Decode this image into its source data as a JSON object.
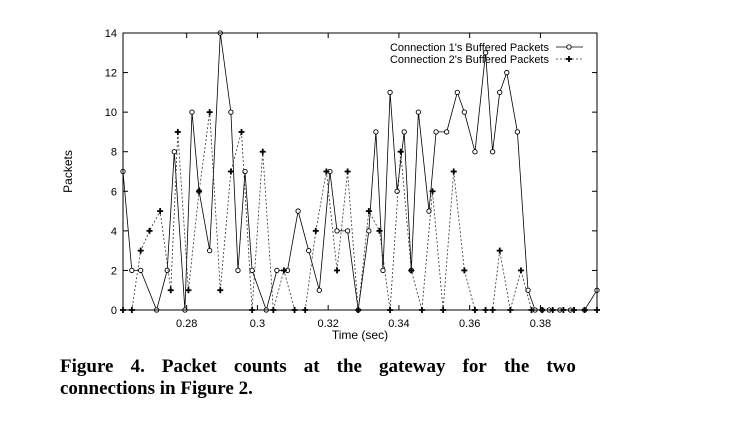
{
  "chart_data": {
    "type": "line",
    "xlabel": "Time (sec)",
    "ylabel": "Packets",
    "xlim": [
      0.262,
      0.396
    ],
    "ylim": [
      0,
      14
    ],
    "x_ticks": [
      0.28,
      0.3,
      0.32,
      0.34,
      0.36,
      0.38
    ],
    "x_tick_labels": [
      "0.28",
      "0.3",
      "0.32",
      "0.34",
      "0.36",
      "0.38"
    ],
    "y_ticks": [
      0,
      2,
      4,
      6,
      8,
      10,
      12,
      14
    ],
    "legend_position": "top-right",
    "grid": false,
    "series": [
      {
        "name": "Connection 1's Buffered Packets",
        "marker": "diamond",
        "line_style": "solid",
        "x": [
          0.262,
          0.2645,
          0.267,
          0.2715,
          0.2745,
          0.2765,
          0.2795,
          0.2815,
          0.2835,
          0.2865,
          0.2895,
          0.2925,
          0.2945,
          0.2965,
          0.2985,
          0.3025,
          0.3055,
          0.3085,
          0.3115,
          0.3145,
          0.3175,
          0.3205,
          0.3225,
          0.3255,
          0.3285,
          0.3315,
          0.3335,
          0.3355,
          0.3375,
          0.3395,
          0.3415,
          0.3435,
          0.3455,
          0.3485,
          0.3505,
          0.3535,
          0.3565,
          0.3585,
          0.3615,
          0.3645,
          0.3665,
          0.3685,
          0.3705,
          0.3735,
          0.3765,
          0.3785,
          0.3805,
          0.3825,
          0.3855,
          0.3885,
          0.3925,
          0.396
        ],
        "y": [
          7,
          2,
          2,
          0,
          2,
          8,
          0,
          10,
          6,
          3,
          14,
          10,
          2,
          7,
          2,
          0,
          2,
          2,
          5,
          3,
          1,
          7,
          4,
          4,
          0,
          4,
          9,
          2,
          11,
          6,
          9,
          2,
          10,
          5,
          9,
          9,
          11,
          10,
          8,
          13,
          8,
          11,
          12,
          9,
          1,
          0,
          0,
          0,
          0,
          0,
          0,
          1
        ]
      },
      {
        "name": "Connection 2's Buffered Packets",
        "marker": "plus",
        "line_style": "dotted",
        "x": [
          0.262,
          0.2645,
          0.267,
          0.2695,
          0.2725,
          0.2755,
          0.2775,
          0.2805,
          0.2835,
          0.2865,
          0.2895,
          0.2925,
          0.2955,
          0.2985,
          0.3015,
          0.3045,
          0.3075,
          0.3105,
          0.3135,
          0.3165,
          0.3195,
          0.3225,
          0.3255,
          0.3285,
          0.3315,
          0.3345,
          0.3375,
          0.3405,
          0.3435,
          0.3465,
          0.3495,
          0.3525,
          0.3555,
          0.3585,
          0.3615,
          0.3645,
          0.3665,
          0.3685,
          0.3715,
          0.3745,
          0.3775,
          0.3805,
          0.3835,
          0.3865,
          0.3895,
          0.3925,
          0.396
        ],
        "y": [
          0,
          0,
          3,
          4,
          5,
          1,
          9,
          1,
          6,
          10,
          1,
          7,
          9,
          0,
          8,
          0,
          2,
          0,
          0,
          4,
          7,
          2,
          7,
          0,
          5,
          4,
          0,
          8,
          2,
          0,
          6,
          0,
          7,
          2,
          0,
          0,
          0,
          3,
          0,
          2,
          0,
          0,
          0,
          0,
          0,
          0,
          0
        ]
      }
    ]
  },
  "caption": {
    "line1_words": [
      "Figure",
      "4.",
      "Packet",
      "counts",
      "at",
      "the",
      "gateway",
      "for",
      "the",
      "two"
    ],
    "line2": "connections in Figure 2."
  }
}
